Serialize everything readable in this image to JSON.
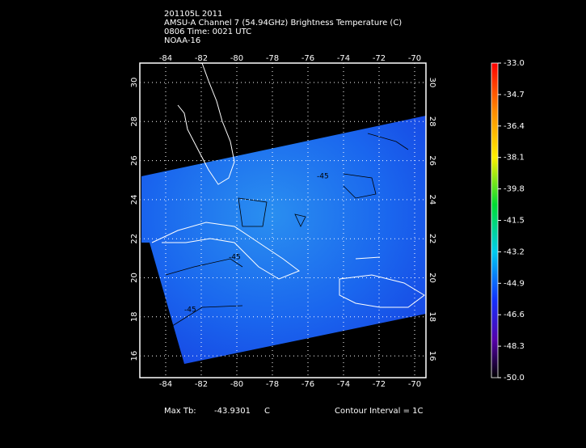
{
  "header": {
    "lines": [
      "201105L 2011",
      "AMSU-A Channel 7 (54.94GHz) Brightness Temperature (C)",
      "0806 Time: 0021 UTC",
      "NOAA-16"
    ]
  },
  "map": {
    "lon_labels": [
      "-84",
      "-82",
      "-80",
      "-78",
      "-76",
      "-74",
      "-72",
      "-70"
    ],
    "lat_labels": [
      "30",
      "28",
      "26",
      "24",
      "22",
      "20",
      "18",
      "16"
    ],
    "contour_labels": [
      "-45",
      "-45",
      "-45"
    ]
  },
  "colorbar": {
    "labels": [
      "-33.0",
      "-34.7",
      "-36.4",
      "-38.1",
      "-39.8",
      "-41.5",
      "-43.2",
      "-44.9",
      "-46.6",
      "-48.3",
      "-50.0"
    ]
  },
  "footer": {
    "max_label": "Max Tb:",
    "max_value": "-43.9301",
    "unit": "C",
    "contour": "Contour Interval = 1C"
  }
}
